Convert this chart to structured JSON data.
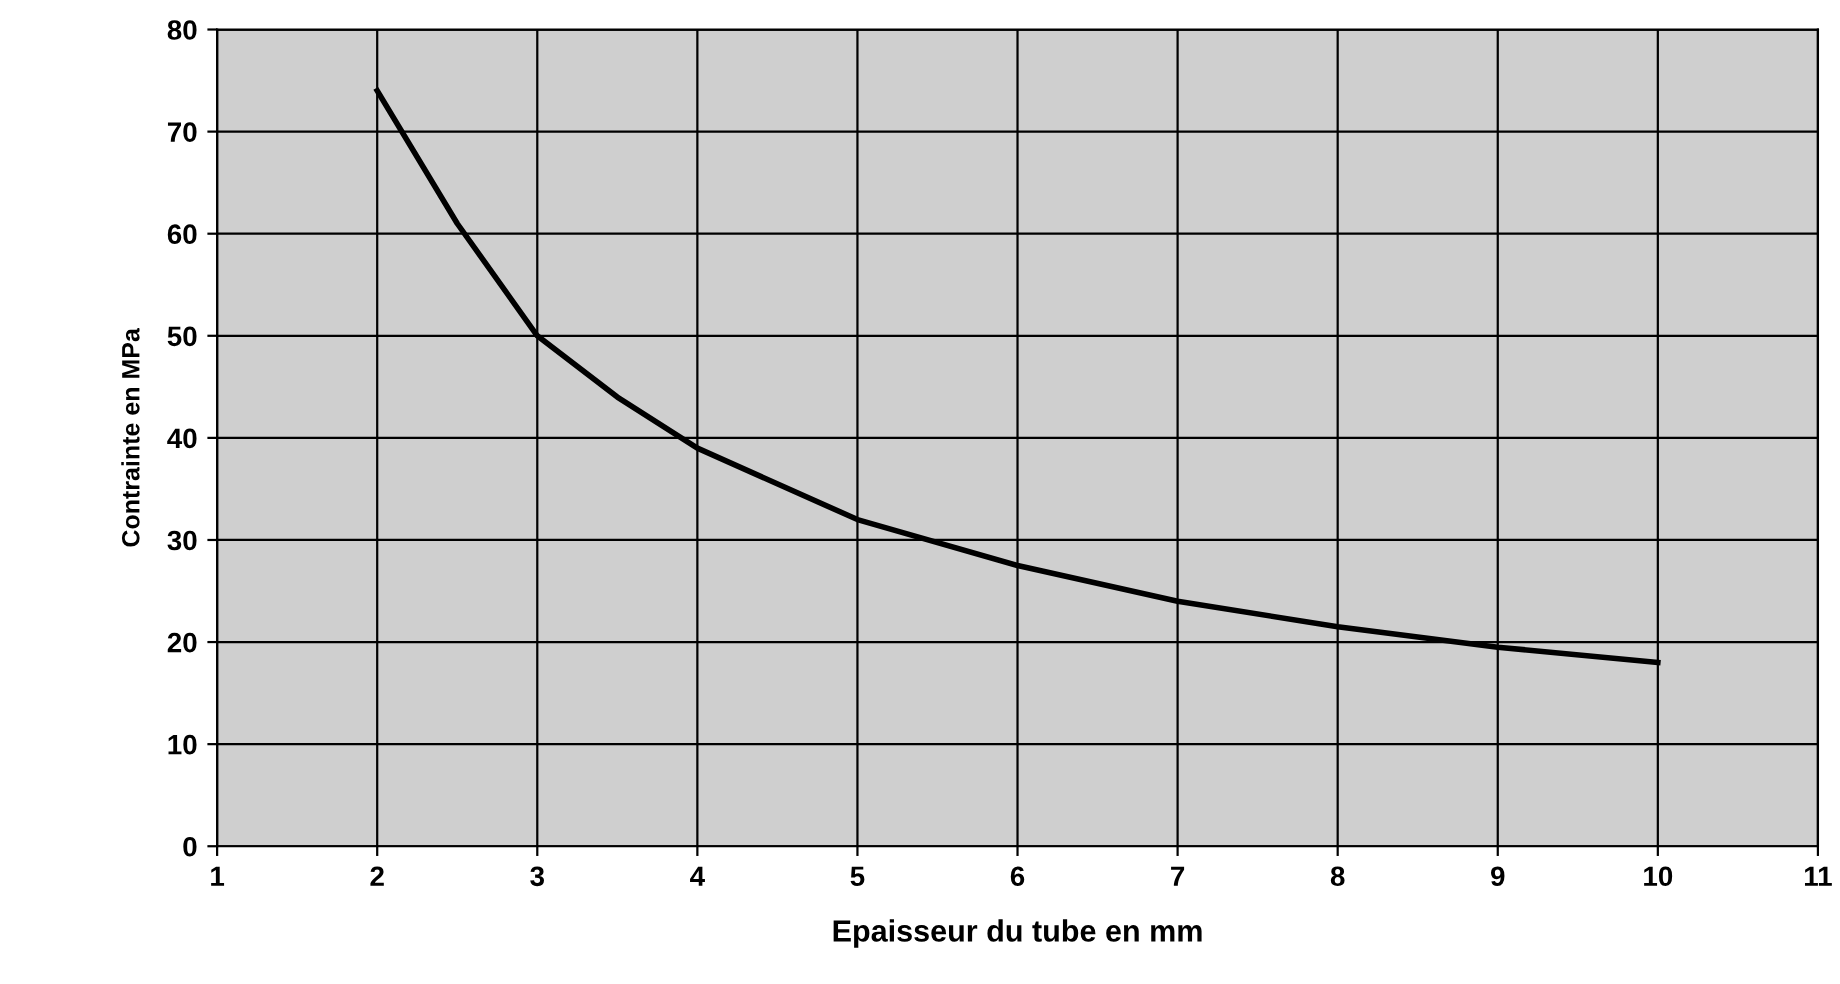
{
  "chart_data": {
    "type": "line",
    "xlabel": "Epaisseur du tube en mm",
    "ylabel": "Contrainte en MPa",
    "x": [
      2,
      2.5,
      3,
      3.5,
      4,
      5,
      6,
      7,
      8,
      9,
      10
    ],
    "series": [
      {
        "color": "#000000",
        "values": [
          74,
          61,
          50,
          44,
          39,
          32,
          27.5,
          24,
          21.5,
          19.5,
          18
        ]
      }
    ],
    "xlim": [
      1,
      11
    ],
    "xticks": [
      1,
      2,
      3,
      4,
      5,
      6,
      7,
      8,
      9,
      10,
      11
    ],
    "ylim": [
      0,
      80
    ],
    "yticks": [
      0,
      10,
      20,
      30,
      40,
      50,
      60,
      70,
      80
    ],
    "grid": true,
    "legend": false,
    "marker": "none",
    "line_style": "solid"
  }
}
